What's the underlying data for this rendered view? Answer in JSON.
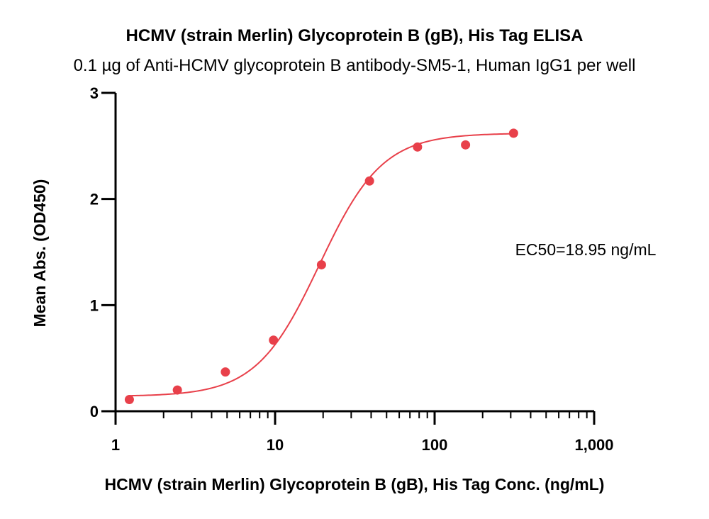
{
  "chart_data": {
    "type": "scatter",
    "title": "HCMV (strain Merlin) Glycoprotein B (gB), His Tag ELISA",
    "subtitle": "0.1 µg of Anti-HCMV glycoprotein B antibody-SM5-1, Human IgG1 per well",
    "xlabel": "HCMV (strain Merlin) Glycoprotein B (gB), His Tag Conc. (ng/mL)",
    "ylabel": "Mean Abs. (OD450)",
    "x_scale": "log",
    "xlim": [
      1,
      1000
    ],
    "ylim": [
      0,
      3
    ],
    "x_ticks": [
      1,
      10,
      100,
      1000
    ],
    "x_tick_labels": [
      "1",
      "10",
      "100",
      "1,000"
    ],
    "y_ticks": [
      0,
      1,
      2,
      3
    ],
    "y_tick_labels": [
      "0",
      "1",
      "2",
      "3"
    ],
    "grid": false,
    "series": [
      {
        "color": "#e8404a",
        "x": [
          1.22,
          2.44,
          4.88,
          9.77,
          19.53,
          39.06,
          78.13,
          156.25,
          312.5
        ],
        "y": [
          0.11,
          0.2,
          0.37,
          0.67,
          1.38,
          2.17,
          2.49,
          2.51,
          2.62
        ]
      }
    ],
    "fit_curve": {
      "model": "4PL",
      "bottom": 0.14,
      "top": 2.62,
      "ec50": 18.95,
      "hill": 2.2,
      "color": "#e8404a"
    },
    "annotation": "EC50=18.95 ng/mL"
  }
}
